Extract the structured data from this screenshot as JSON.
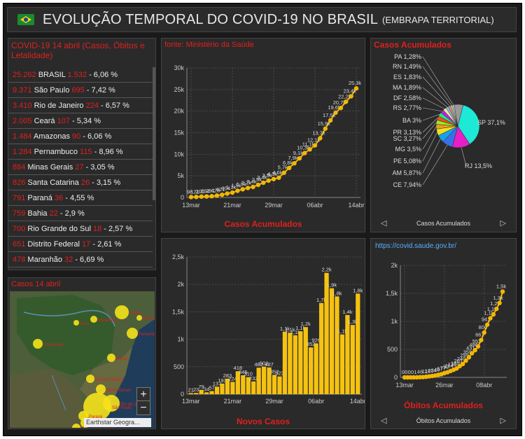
{
  "header": {
    "title": "EVOLUÇÃO TEMPORAL DO COVID-19 NO BRASIL",
    "subtitle": "(EMBRAPA TERRITORIAL)"
  },
  "list_panel": {
    "title": "COVID-19 14 abril (Casos, Óbitos e Letalidade)",
    "rows": [
      {
        "casos": "25.262",
        "nome": "BRASIL",
        "obitos": "1.532",
        "letal": "- 6,06 %"
      },
      {
        "casos": "9.371",
        "nome": "São Paulo",
        "obitos": "695",
        "letal": "- 7,42 %"
      },
      {
        "casos": "3.410",
        "nome": "Rio de Janeiro",
        "obitos": "224",
        "letal": "- 6,57 %"
      },
      {
        "casos": "2.005",
        "nome": "Ceará",
        "obitos": "107",
        "letal": "- 5,34 %"
      },
      {
        "casos": "1.484",
        "nome": "Amazonas",
        "obitos": "90",
        "letal": "- 6,06 %"
      },
      {
        "casos": "1.284",
        "nome": "Pernambuco",
        "obitos": "115",
        "letal": "- 8,96 %"
      },
      {
        "casos": "884",
        "nome": "Minas Gerais",
        "obitos": "27",
        "letal": "- 3,05 %"
      },
      {
        "casos": "826",
        "nome": "Santa Catarina",
        "obitos": "26",
        "letal": "- 3,15 %"
      },
      {
        "casos": "791",
        "nome": "Paraná",
        "obitos": "36",
        "letal": "- 4,55 %"
      },
      {
        "casos": "759",
        "nome": "Bahia",
        "obitos": "22",
        "letal": "- 2,9 %"
      },
      {
        "casos": "700",
        "nome": "Rio Grande do Sul",
        "obitos": "18",
        "letal": "- 2,57 %"
      },
      {
        "casos": "651",
        "nome": "Distrito Federal",
        "obitos": "17",
        "letal": "- 2,61 %"
      },
      {
        "casos": "478",
        "nome": "Maranhão",
        "obitos": "32",
        "letal": "- 6,69 %"
      }
    ]
  },
  "map_panel": {
    "title": "Casos 14 abril",
    "zoom_in": "+",
    "zoom_out": "−",
    "attribution": "Earthstar Geogra..."
  },
  "acum_panel": {
    "source": "fonte: Ministério da Saúde",
    "caption": "Casos Acumulados"
  },
  "novos_panel": {
    "caption": "Novos Casos"
  },
  "pie_panel": {
    "title": "Casos Acumulados",
    "nav_label": "Casos Acumulados",
    "prev": "◁",
    "next": "▷"
  },
  "obitos_panel": {
    "link": "https://covid.saude.gov.br/",
    "caption": "Óbitos Acumulados",
    "nav_label": "Óbitos Acumulados",
    "prev": "◁",
    "next": "▷"
  },
  "colors": {
    "accent_red": "#e0201e",
    "series_orange": "#f2b705",
    "bar_yellow": "#f5c211",
    "link_blue": "#5ab0ff"
  },
  "chart_data": [
    {
      "type": "line",
      "title": "Casos Acumulados",
      "x_ticks": [
        "13mar",
        "21mar",
        "29mar",
        "06abr",
        "14abr"
      ],
      "y_ticks": [
        "0",
        "5k",
        "10k",
        "15k",
        "20k",
        "25k",
        "30k"
      ],
      "ylim": [
        0,
        30000
      ],
      "x": [
        "13mar",
        "14mar",
        "15mar",
        "16mar",
        "17mar",
        "18mar",
        "19mar",
        "20mar",
        "21mar",
        "22mar",
        "23mar",
        "24mar",
        "25mar",
        "26mar",
        "27mar",
        "28mar",
        "29mar",
        "30mar",
        "31mar",
        "01abr",
        "02abr",
        "03abr",
        "04abr",
        "05abr",
        "06abr",
        "07abr",
        "08abr",
        "09abr",
        "10abr",
        "11abr",
        "12abr",
        "13abr",
        "14abr"
      ],
      "values": [
        98,
        121,
        200,
        234,
        291,
        428,
        621,
        904,
        1128,
        1546,
        1891,
        2201,
        2433,
        2915,
        3417,
        3904,
        4256,
        4579,
        5717,
        6836,
        7910,
        9056,
        10278,
        11130,
        12056,
        13717,
        15927,
        17857,
        19638,
        20727,
        22169,
        23430,
        25262
      ],
      "labels": [
        "98",
        "121",
        "200",
        "234",
        "291",
        "428",
        "621",
        "904",
        "1,1k",
        "1,5k",
        "1,9k",
        "2,2k",
        "2,4k",
        "2,9k",
        "3,4k",
        "3,9k",
        "4,3k",
        "4,6k",
        "5,7k",
        "6,8k",
        "7,9k",
        "9,1k",
        "10,3k",
        "11,1k",
        "12,1k",
        "13,7k",
        "15,9k",
        "17,9k",
        "19,6k",
        "20,7k",
        "22,2k",
        "23,4k",
        "25,3k"
      ]
    },
    {
      "type": "bar",
      "title": "Novos Casos",
      "x_ticks": [
        "13mar",
        "21mar",
        "29mar",
        "06abr",
        "14abr"
      ],
      "y_ticks": [
        "0",
        "500",
        "1k",
        "1,5k",
        "2k",
        "2,5k"
      ],
      "ylim": [
        0,
        2500
      ],
      "values": [
        21,
        23,
        79,
        34,
        57,
        137,
        193,
        283,
        224,
        418,
        345,
        310,
        232,
        482,
        502,
        487,
        352,
        323,
        1138,
        1119,
        1074,
        1146,
        1222,
        852,
        926,
        1661,
        2210,
        1930,
        1781,
        1089,
        1442,
        1261,
        1832
      ],
      "labels": [
        "21",
        "23",
        "79",
        "34",
        "57",
        "137",
        "193",
        "283",
        "224",
        "418",
        "345",
        "310",
        "232",
        "482",
        "502",
        "487",
        "352",
        "323",
        "1,1k",
        "1,1k",
        "1,1k",
        "1,1k",
        "1,2k",
        "852",
        "926",
        "1,7k",
        "2,2k",
        "1,9k",
        "1,8k",
        "1,1k",
        "1,4k",
        "1,3k",
        "1,8k"
      ]
    },
    {
      "type": "pie",
      "title": "Casos Acumulados",
      "slices": [
        {
          "label": "SP 37,1%",
          "value": 37.1,
          "color": "#1ee8d6"
        },
        {
          "label": "RJ 13,5%",
          "value": 13.5,
          "color": "#e81ec6"
        },
        {
          "label": "CE 7,94%",
          "value": 7.94,
          "color": "#3a6fe8"
        },
        {
          "label": "AM 5,87%",
          "value": 5.87,
          "color": "#1aa0e8"
        },
        {
          "label": "PE 5,08%",
          "value": 5.08,
          "color": "#f0e020"
        },
        {
          "label": "MG 3,5%",
          "value": 3.5,
          "color": "#e8a020"
        },
        {
          "label": "SC 3,27%",
          "value": 3.27,
          "color": "#a0e820"
        },
        {
          "label": "PR 3,13%",
          "value": 3.13,
          "color": "#e85020"
        },
        {
          "label": "BA 3%",
          "value": 3.0,
          "color": "#20e880"
        },
        {
          "label": "RS 2,77%",
          "value": 2.77,
          "color": "#c020e8"
        },
        {
          "label": "DF 2,58%",
          "value": 2.58,
          "color": "#e8e8a0"
        },
        {
          "label": "MA 1,89%",
          "value": 1.89,
          "color": "#80c0ff"
        },
        {
          "label": "ES 1,83%",
          "value": 1.83,
          "color": "#ff8080"
        },
        {
          "label": "RN 1,49%",
          "value": 1.49,
          "color": "#80ff80"
        },
        {
          "label": "PA 1,28%",
          "value": 1.28,
          "color": "#ffa0ff"
        },
        {
          "label": "",
          "value": 6.76,
          "color": "#9a9a9a"
        }
      ]
    },
    {
      "type": "line",
      "title": "Óbitos Acumulados",
      "x_ticks": [
        "13mar",
        "26mar",
        "08abr"
      ],
      "y_ticks": [
        "0",
        "500",
        "1k",
        "1,5k",
        "2k"
      ],
      "ylim": [
        0,
        2000
      ],
      "values": [
        0,
        0,
        0,
        0,
        1,
        4,
        6,
        11,
        18,
        25,
        34,
        46,
        57,
        77,
        92,
        114,
        136,
        159,
        201,
        240,
        299,
        359,
        431,
        486,
        553,
        667,
        800,
        941,
        1056,
        1124,
        1223,
        1328,
        1532
      ],
      "labels": [
        "0",
        "0",
        "0",
        "0",
        "1",
        "4",
        "6",
        "11",
        "18",
        "25",
        "34",
        "46",
        "57",
        "77",
        "92",
        "114",
        "136",
        "159",
        "201",
        "240",
        "299",
        "359",
        "431",
        "486",
        "553",
        "667",
        "800",
        "941",
        "1,1k",
        "1,1k",
        "1,2k",
        "1,3k",
        "1,5k"
      ]
    }
  ],
  "map_points": [
    {
      "label": "Amazonas",
      "r": 7
    },
    {
      "label": "Pará",
      "r": 4
    },
    {
      "label": "Maranhão",
      "r": 5
    },
    {
      "label": "Ceará",
      "r": 10
    },
    {
      "label": "Rio Grande do Norte",
      "r": 4
    },
    {
      "label": "Pernambuco",
      "r": 8
    },
    {
      "label": "Bahia",
      "r": 6
    },
    {
      "label": "Distrito Federal",
      "r": 6
    },
    {
      "label": "Minas Gerais",
      "r": 7
    },
    {
      "label": "Rio de Janeiro",
      "r": 12
    },
    {
      "label": "São Paulo",
      "r": 20
    },
    {
      "label": "Paraná",
      "r": 7
    },
    {
      "label": "Santa Catarina",
      "r": 7
    },
    {
      "label": "Rio Grande do Sul",
      "r": 6
    }
  ]
}
